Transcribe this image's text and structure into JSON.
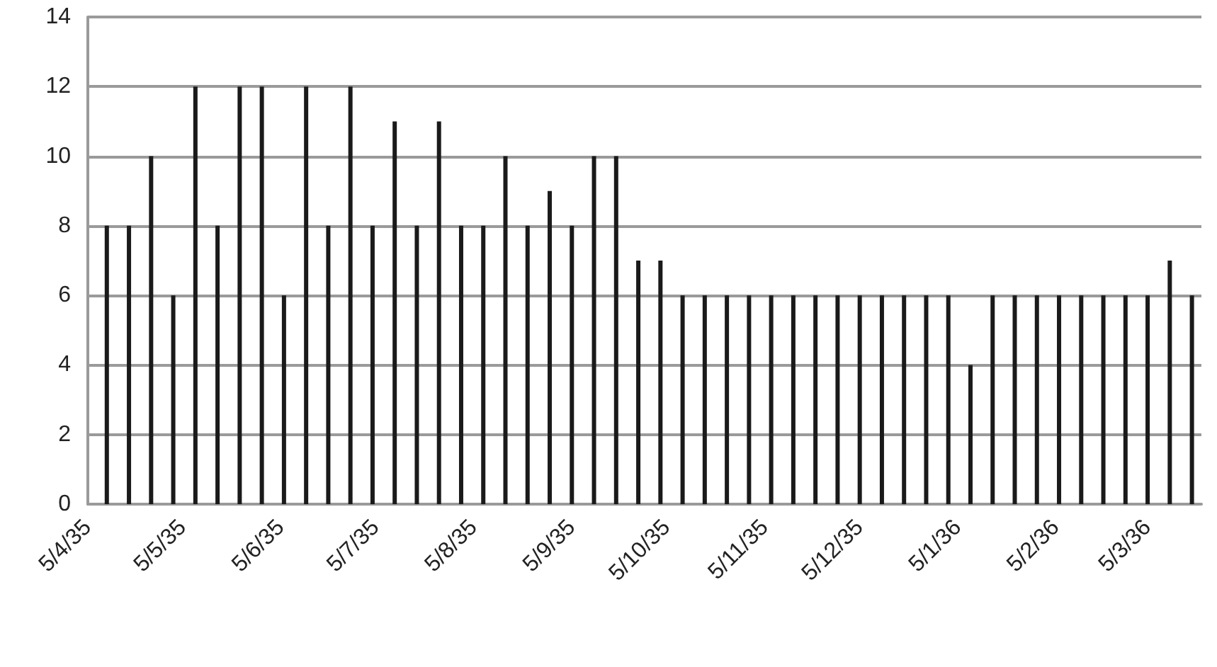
{
  "chart_data": {
    "type": "bar",
    "x": [
      "1935-04-11",
      "1935-04-18",
      "1935-04-25",
      "1935-05-02",
      "1935-05-09",
      "1935-05-16",
      "1935-05-23",
      "1935-05-30",
      "1935-06-06",
      "1935-06-13",
      "1935-06-20",
      "1935-06-27",
      "1935-07-04",
      "1935-07-11",
      "1935-07-18",
      "1935-07-25",
      "1935-08-01",
      "1935-08-08",
      "1935-08-15",
      "1935-08-22",
      "1935-08-29",
      "1935-09-05",
      "1935-09-12",
      "1935-09-19",
      "1935-09-26",
      "1935-10-03",
      "1935-10-10",
      "1935-10-17",
      "1935-10-24",
      "1935-10-31",
      "1935-11-07",
      "1935-11-14",
      "1935-11-21",
      "1935-11-28",
      "1935-12-05",
      "1935-12-12",
      "1935-12-19",
      "1935-12-26",
      "1936-01-02",
      "1936-01-09",
      "1936-01-16",
      "1936-01-23",
      "1936-01-30",
      "1936-02-06",
      "1936-02-13",
      "1936-02-20",
      "1936-02-27",
      "1936-03-05",
      "1936-03-12",
      "1936-03-19"
    ],
    "values": [
      8,
      8,
      10,
      6,
      12,
      8,
      12,
      12,
      6,
      12,
      8,
      12,
      8,
      11,
      8,
      11,
      8,
      8,
      10,
      8,
      9,
      8,
      10,
      10,
      7,
      7,
      6,
      6,
      6,
      6,
      6,
      6,
      6,
      6,
      6,
      6,
      6,
      6,
      6,
      4,
      6,
      6,
      6,
      6,
      6,
      6,
      6,
      6,
      7,
      6
    ],
    "color": "#1a1a1a",
    "xlim": [
      "1935-04-05",
      "1936-03-22"
    ],
    "xticks": [
      {
        "value": "1935-04-05",
        "label": "5/4/35"
      },
      {
        "value": "1935-05-05",
        "label": "5/5/35"
      },
      {
        "value": "1935-06-05",
        "label": "5/6/35"
      },
      {
        "value": "1935-07-05",
        "label": "5/7/35"
      },
      {
        "value": "1935-08-05",
        "label": "5/8/35"
      },
      {
        "value": "1935-09-05",
        "label": "5/9/35"
      },
      {
        "value": "1935-10-05",
        "label": "5/10/35"
      },
      {
        "value": "1935-11-05",
        "label": "5/11/35"
      },
      {
        "value": "1935-12-05",
        "label": "5/12/35"
      },
      {
        "value": "1936-01-05",
        "label": "5/1/36"
      },
      {
        "value": "1936-02-05",
        "label": "5/2/36"
      },
      {
        "value": "1936-03-05",
        "label": "5/3/36"
      }
    ],
    "ylim": [
      0,
      14
    ],
    "yticks": [
      0,
      2,
      4,
      6,
      8,
      10,
      12,
      14
    ],
    "grid": "y"
  }
}
